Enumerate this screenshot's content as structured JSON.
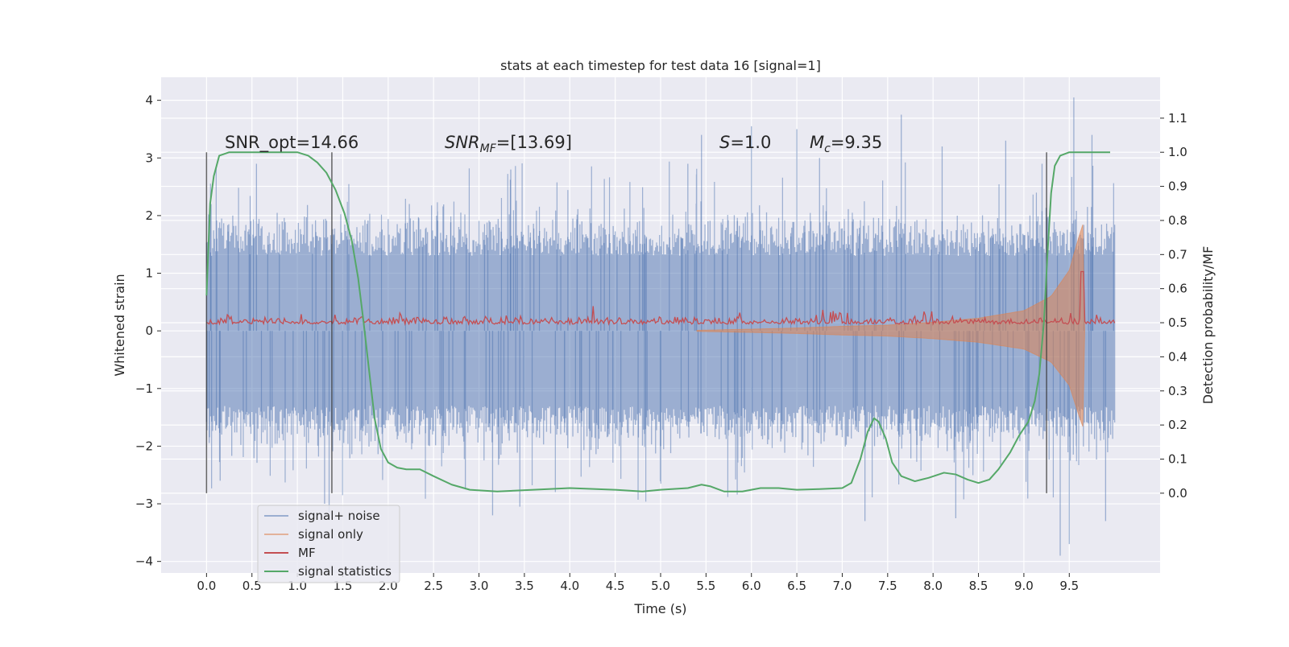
{
  "chart_data": {
    "type": "line",
    "title": "stats at each timestep for test data 16 [signal=1]",
    "xlabel": "Time (s)",
    "ylabel": "Whitened strain",
    "y2label": "Detection probability/MF",
    "xlim": [
      -0.5,
      10.5
    ],
    "ylim": [
      -4.2,
      4.4
    ],
    "y2lim": [
      -0.234,
      1.22
    ],
    "x_ticks": [
      0.0,
      0.5,
      1.0,
      1.5,
      2.0,
      2.5,
      3.0,
      3.5,
      4.0,
      4.5,
      5.0,
      5.5,
      6.0,
      6.5,
      7.0,
      7.5,
      8.0,
      8.5,
      9.0,
      9.5
    ],
    "y_ticks": [
      -4,
      -3,
      -2,
      -1,
      0,
      1,
      2,
      3,
      4
    ],
    "y2_ticks": [
      0.0,
      0.1,
      0.2,
      0.3,
      0.4,
      0.5,
      0.6,
      0.7,
      0.8,
      0.9,
      1.0,
      1.1
    ],
    "grid": true,
    "legend_position": "lower-left",
    "annotations": {
      "snr_opt": "SNR_opt=14.66",
      "snr_mf_label": "SNR",
      "snr_mf_sub": "MF",
      "snr_mf_value": "=[13.69]",
      "s_label": "S",
      "s_value": "=1.0",
      "mc_label": "M",
      "mc_sub": "c",
      "mc_value": "=9.35"
    },
    "vertical_lines_x": [
      0.0,
      1.38,
      9.25
    ],
    "series": [
      {
        "name": "signal+ noise",
        "color": "#4c72b0",
        "x_range": [
          0.0,
          10.0
        ],
        "typical_band": [
          -1.3,
          1.3
        ],
        "spikes": [
          [
            0.05,
            2.2
          ],
          [
            0.15,
            -2.6
          ],
          [
            0.55,
            2.9
          ],
          [
            1.3,
            -3.0
          ],
          [
            1.35,
            -3.15
          ],
          [
            2.85,
            -2.75
          ],
          [
            3.15,
            -3.2
          ],
          [
            3.35,
            2.8
          ],
          [
            3.45,
            -3.05
          ],
          [
            5.3,
            2.9
          ],
          [
            5.45,
            3.4
          ],
          [
            6.0,
            3.55
          ],
          [
            6.5,
            3.5
          ],
          [
            6.75,
            3.0
          ],
          [
            7.25,
            -3.3
          ],
          [
            7.65,
            3.75
          ],
          [
            8.1,
            3.2
          ],
          [
            8.25,
            -3.25
          ],
          [
            8.8,
            3.3
          ],
          [
            9.2,
            2.9
          ],
          [
            9.4,
            -3.9
          ],
          [
            9.5,
            -3.7
          ],
          [
            9.55,
            4.05
          ],
          [
            9.75,
            3.4
          ],
          [
            9.9,
            -3.3
          ]
        ]
      },
      {
        "name": "signal only",
        "color": "#dd8452",
        "x_range": [
          5.4,
          9.67
        ],
        "envelope": [
          [
            5.4,
            0.01
          ],
          [
            6.0,
            0.03
          ],
          [
            6.5,
            0.05
          ],
          [
            7.0,
            0.08
          ],
          [
            7.5,
            0.1
          ],
          [
            8.0,
            0.15
          ],
          [
            8.5,
            0.22
          ],
          [
            9.0,
            0.35
          ],
          [
            9.3,
            0.6
          ],
          [
            9.5,
            1.05
          ],
          [
            9.6,
            1.6
          ],
          [
            9.65,
            1.85
          ],
          [
            9.67,
            0.0
          ]
        ]
      },
      {
        "name": "MF",
        "color": "#c44e52",
        "baseline": 0.5,
        "noise_amplitude": 0.012,
        "peak": [
          9.64,
          0.65
        ]
      },
      {
        "name": "signal statistics",
        "color": "#55a868",
        "points": [
          [
            0.0,
            0.58
          ],
          [
            0.04,
            0.85
          ],
          [
            0.08,
            0.93
          ],
          [
            0.14,
            0.99
          ],
          [
            0.25,
            1.0
          ],
          [
            0.5,
            1.0
          ],
          [
            0.8,
            1.0
          ],
          [
            1.0,
            1.0
          ],
          [
            1.12,
            0.99
          ],
          [
            1.22,
            0.97
          ],
          [
            1.32,
            0.94
          ],
          [
            1.42,
            0.89
          ],
          [
            1.52,
            0.82
          ],
          [
            1.6,
            0.74
          ],
          [
            1.67,
            0.63
          ],
          [
            1.73,
            0.5
          ],
          [
            1.79,
            0.36
          ],
          [
            1.85,
            0.22
          ],
          [
            1.92,
            0.13
          ],
          [
            2.0,
            0.09
          ],
          [
            2.1,
            0.075
          ],
          [
            2.2,
            0.07
          ],
          [
            2.35,
            0.07
          ],
          [
            2.5,
            0.05
          ],
          [
            2.7,
            0.025
          ],
          [
            2.9,
            0.01
          ],
          [
            3.2,
            0.005
          ],
          [
            3.6,
            0.01
          ],
          [
            4.0,
            0.015
          ],
          [
            4.5,
            0.01
          ],
          [
            4.8,
            0.005
          ],
          [
            5.0,
            0.01
          ],
          [
            5.3,
            0.015
          ],
          [
            5.45,
            0.025
          ],
          [
            5.55,
            0.02
          ],
          [
            5.7,
            0.005
          ],
          [
            5.9,
            0.005
          ],
          [
            6.1,
            0.015
          ],
          [
            6.3,
            0.015
          ],
          [
            6.5,
            0.01
          ],
          [
            6.75,
            0.012
          ],
          [
            7.0,
            0.015
          ],
          [
            7.1,
            0.03
          ],
          [
            7.2,
            0.1
          ],
          [
            7.28,
            0.18
          ],
          [
            7.35,
            0.22
          ],
          [
            7.4,
            0.21
          ],
          [
            7.48,
            0.16
          ],
          [
            7.55,
            0.09
          ],
          [
            7.65,
            0.05
          ],
          [
            7.8,
            0.035
          ],
          [
            7.95,
            0.045
          ],
          [
            8.12,
            0.06
          ],
          [
            8.25,
            0.055
          ],
          [
            8.38,
            0.04
          ],
          [
            8.5,
            0.03
          ],
          [
            8.62,
            0.04
          ],
          [
            8.72,
            0.07
          ],
          [
            8.85,
            0.12
          ],
          [
            8.95,
            0.17
          ],
          [
            9.05,
            0.21
          ],
          [
            9.12,
            0.27
          ],
          [
            9.17,
            0.35
          ],
          [
            9.22,
            0.5
          ],
          [
            9.26,
            0.7
          ],
          [
            9.3,
            0.88
          ],
          [
            9.34,
            0.96
          ],
          [
            9.4,
            0.99
          ],
          [
            9.5,
            1.0
          ],
          [
            9.7,
            1.0
          ],
          [
            9.95,
            1.0
          ]
        ]
      }
    ]
  }
}
